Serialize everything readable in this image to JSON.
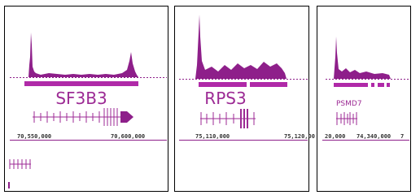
{
  "panels": [
    {
      "gene": "SF3B3",
      "coords": [
        "70,550,000",
        "70,600,000"
      ]
    },
    {
      "gene": "RPS3",
      "coords": [
        "75,110,000",
        "75,120,00"
      ]
    },
    {
      "gene": "PSMD7",
      "coords": [
        "20,000",
        "74,340,000",
        "7"
      ]
    }
  ]
}
